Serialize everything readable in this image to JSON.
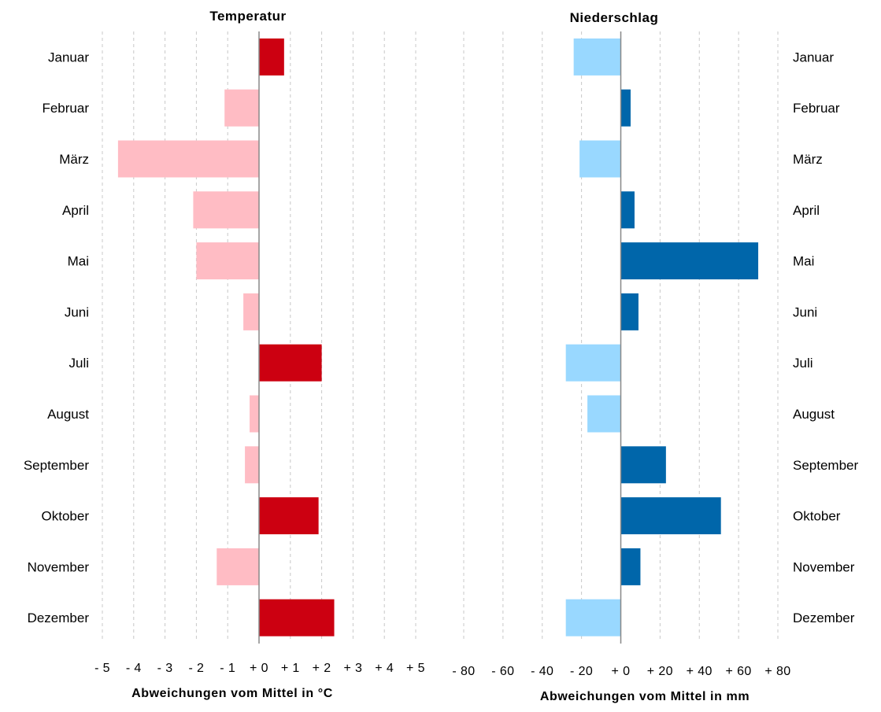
{
  "colors": {
    "temp_positive": "#cc0011",
    "temp_negative": "#ffbcc4",
    "precip_positive": "#0066aa",
    "precip_negative": "#99d8ff",
    "grid": "#c8c8c8",
    "axis": "#888888"
  },
  "chart_data": [
    {
      "type": "bar",
      "orientation": "horizontal",
      "title": "Temperatur",
      "xlabel": "Abweichungen vom Mittel in °C",
      "ylabel": "",
      "xlim": [
        -5,
        5
      ],
      "grid": true,
      "ticks": [
        -5,
        -4,
        -3,
        -2,
        -1,
        0,
        1,
        2,
        3,
        4,
        5
      ],
      "tick_labels": [
        "- 5",
        "- 4",
        "- 3",
        "- 2",
        "- 1",
        "+ 0",
        "+ 1",
        "+ 2",
        "+ 3",
        "+ 4",
        "+ 5"
      ],
      "categories": [
        "Januar",
        "Februar",
        "März",
        "April",
        "Mai",
        "Juni",
        "Juli",
        "August",
        "September",
        "Oktober",
        "November",
        "Dezember"
      ],
      "values": [
        0.8,
        -1.1,
        -4.5,
        -2.1,
        -2.0,
        -0.5,
        2.0,
        -0.3,
        -0.45,
        1.9,
        -1.35,
        2.4
      ]
    },
    {
      "type": "bar",
      "orientation": "horizontal",
      "title": "Niederschlag",
      "xlabel": "Abweichungen vom Mittel in mm",
      "ylabel": "",
      "xlim": [
        -80,
        80
      ],
      "grid": true,
      "ticks": [
        -80,
        -60,
        -40,
        -20,
        0,
        20,
        40,
        60,
        80
      ],
      "tick_labels": [
        "- 80",
        "- 60",
        "- 40",
        "- 20",
        "+ 0",
        "+ 20",
        "+ 40",
        "+ 60",
        "+ 80"
      ],
      "categories": [
        "Januar",
        "Februar",
        "März",
        "April",
        "Mai",
        "Juni",
        "Juli",
        "August",
        "September",
        "Oktober",
        "November",
        "Dezember"
      ],
      "values": [
        -24,
        5,
        -21,
        7,
        70,
        9,
        -28,
        -17,
        23,
        51,
        10,
        -28
      ]
    }
  ]
}
